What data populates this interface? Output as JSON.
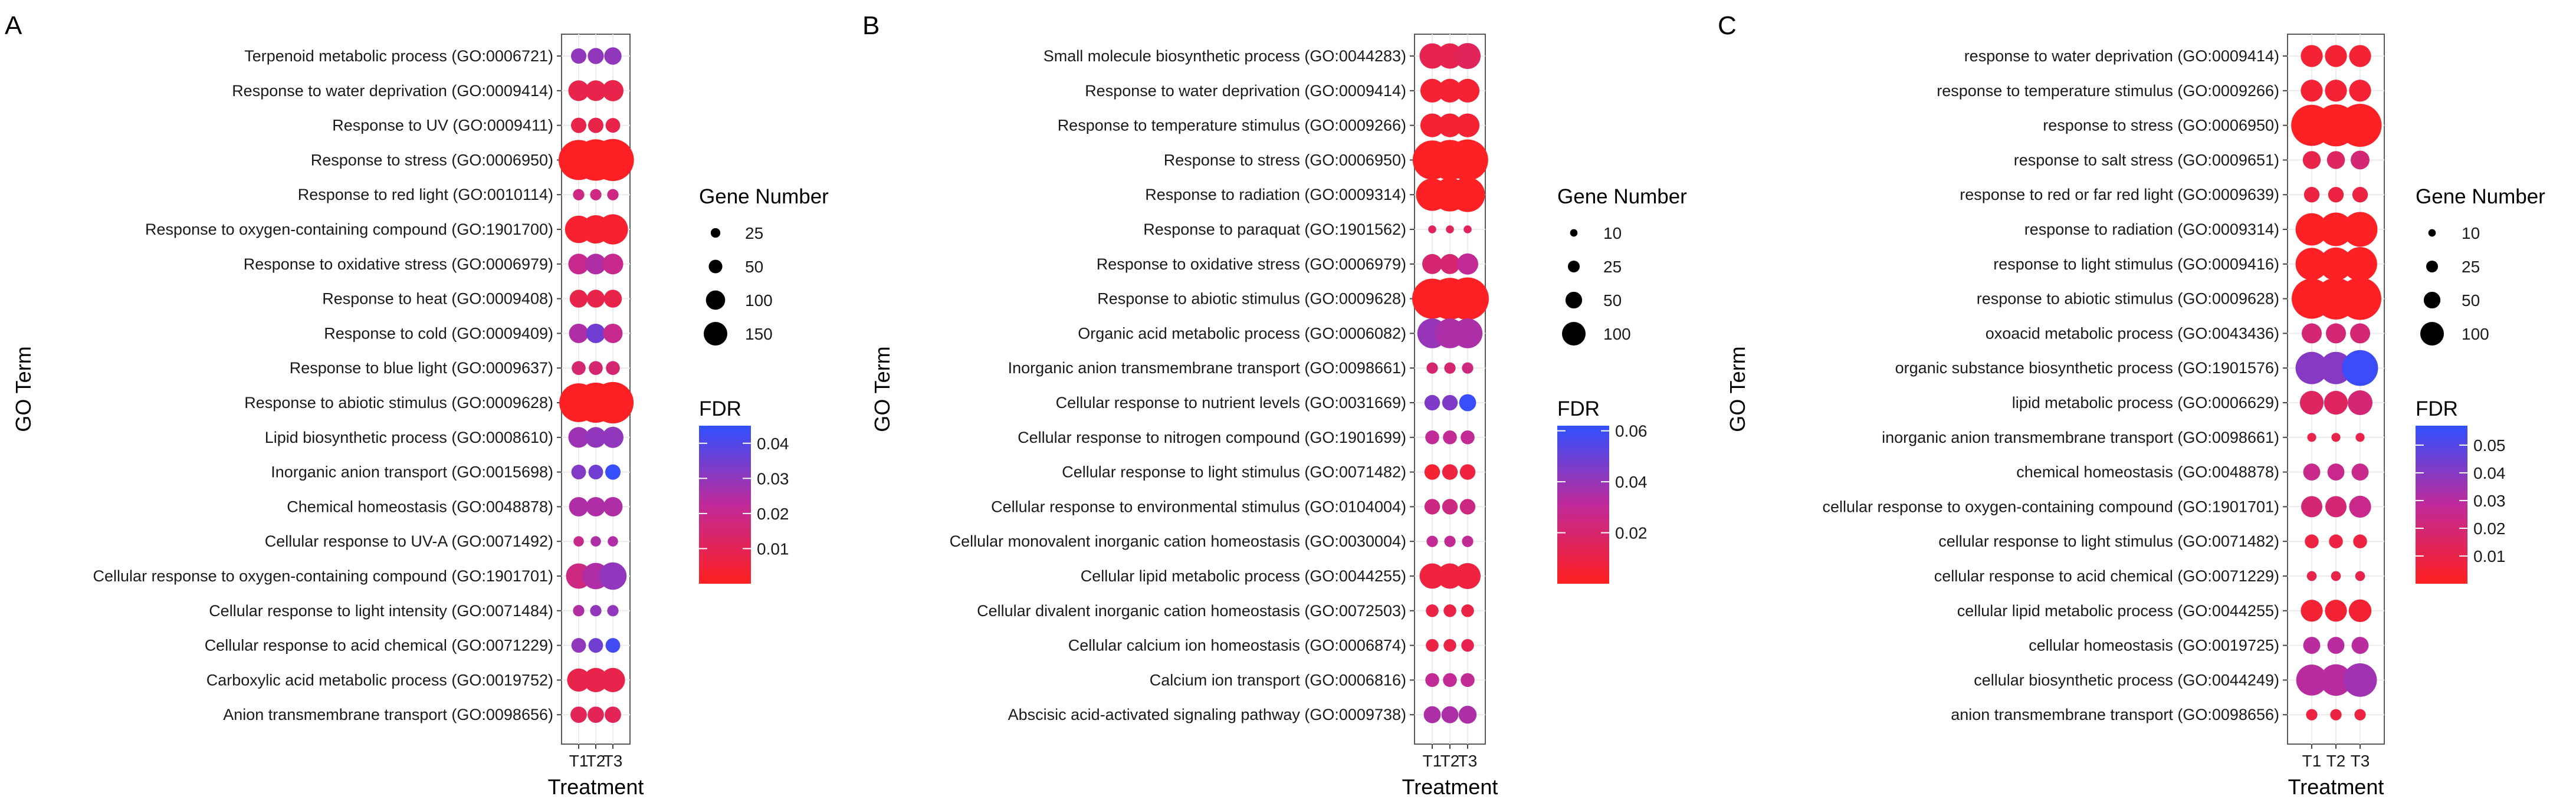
{
  "chart_data": [
    {
      "type": "scatter",
      "panel": "A",
      "xlabel": "Treatment",
      "ylabel": "GO Term",
      "x": [
        "T1",
        "T2",
        "T3"
      ],
      "size_legend": {
        "title": "Gene Number",
        "values": [
          25,
          50,
          100,
          150
        ]
      },
      "color_legend": {
        "title": "FDR",
        "ticks": [
          0.01,
          0.02,
          0.03,
          0.04
        ],
        "range": [
          0.0,
          0.045
        ],
        "low_color": "#ff2020",
        "mid_color": "#c02a9a",
        "high_color": "#3050ff"
      },
      "terms": [
        {
          "label": "Terpenoid metabolic process (GO:0006721)",
          "size": [
            22,
            24,
            28
          ],
          "fdr": [
            0.03,
            0.03,
            0.03
          ]
        },
        {
          "label": "Response to water deprivation (GO:0009414)",
          "size": [
            40,
            40,
            42
          ],
          "fdr": [
            0.008,
            0.008,
            0.008
          ]
        },
        {
          "label": "Response to UV (GO:0009411)",
          "size": [
            22,
            22,
            20
          ],
          "fdr": [
            0.008,
            0.008,
            0.008
          ]
        },
        {
          "label": "Response to stress (GO:0006950)",
          "size": [
            150,
            160,
            165
          ],
          "fdr": [
            0.001,
            0.001,
            0.001
          ]
        },
        {
          "label": "Response to red light (GO:0010114)",
          "size": [
            12,
            12,
            12
          ],
          "fdr": [
            0.018,
            0.018,
            0.018
          ]
        },
        {
          "label": "Response to oxygen-containing compound (GO:1901700)",
          "size": [
            70,
            75,
            85
          ],
          "fdr": [
            0.003,
            0.003,
            0.003
          ]
        },
        {
          "label": "Response to oxidative stress (GO:0006979)",
          "size": [
            40,
            40,
            40
          ],
          "fdr": [
            0.02,
            0.025,
            0.02
          ]
        },
        {
          "label": "Response to heat (GO:0009408)",
          "size": [
            30,
            30,
            30
          ],
          "fdr": [
            0.008,
            0.008,
            0.008
          ]
        },
        {
          "label": "Response to cold (GO:0009409)",
          "size": [
            35,
            35,
            35
          ],
          "fdr": [
            0.025,
            0.035,
            0.02
          ]
        },
        {
          "label": "Response to blue light (GO:0009637)",
          "size": [
            18,
            18,
            18
          ],
          "fdr": [
            0.015,
            0.015,
            0.015
          ]
        },
        {
          "label": "Response to abiotic stimulus (GO:0009628)",
          "size": [
            140,
            150,
            160
          ],
          "fdr": [
            0.001,
            0.001,
            0.001
          ]
        },
        {
          "label": "Lipid biosynthetic process (GO:0008610)",
          "size": [
            40,
            40,
            42
          ],
          "fdr": [
            0.028,
            0.03,
            0.03
          ]
        },
        {
          "label": "Inorganic anion transport (GO:0015698)",
          "size": [
            20,
            20,
            22
          ],
          "fdr": [
            0.032,
            0.035,
            0.044
          ]
        },
        {
          "label": "Chemical homeostasis (GO:0048878)",
          "size": [
            35,
            35,
            35
          ],
          "fdr": [
            0.025,
            0.025,
            0.025
          ]
        },
        {
          "label": "Cellular response to UV-A (GO:0071492)",
          "size": [
            10,
            10,
            10
          ],
          "fdr": [
            0.02,
            0.025,
            0.025
          ]
        },
        {
          "label": "Cellular response to oxygen-containing compound (GO:1901701)",
          "size": [
            60,
            65,
            70
          ],
          "fdr": [
            0.018,
            0.025,
            0.03
          ]
        },
        {
          "label": "Cellular response to light intensity (GO:0071484)",
          "size": [
            12,
            12,
            12
          ],
          "fdr": [
            0.025,
            0.03,
            0.03
          ]
        },
        {
          "label": "Cellular response to acid chemical (GO:0071229)",
          "size": [
            20,
            20,
            20
          ],
          "fdr": [
            0.03,
            0.035,
            0.042
          ]
        },
        {
          "label": "Carboxylic acid metabolic process (GO:0019752)",
          "size": [
            50,
            55,
            55
          ],
          "fdr": [
            0.008,
            0.008,
            0.008
          ]
        },
        {
          "label": "Anion transmembrane transport (GO:0098656)",
          "size": [
            25,
            25,
            25
          ],
          "fdr": [
            0.01,
            0.01,
            0.01
          ]
        }
      ]
    },
    {
      "type": "scatter",
      "panel": "B",
      "xlabel": "Treatment",
      "ylabel": "GO Term",
      "x": [
        "T1",
        "T2",
        "T3"
      ],
      "size_legend": {
        "title": "Gene Number",
        "values": [
          10,
          25,
          50,
          100
        ]
      },
      "color_legend": {
        "title": "FDR",
        "ticks": [
          0.02,
          0.04,
          0.06
        ],
        "range": [
          0.0,
          0.062
        ],
        "low_color": "#ff2020",
        "mid_color": "#c02a9a",
        "high_color": "#3050ff"
      },
      "terms": [
        {
          "label": "Small molecule biosynthetic process (GO:0044283)",
          "size": [
            40,
            40,
            42
          ],
          "fdr": [
            0.012,
            0.012,
            0.015
          ]
        },
        {
          "label": "Response to water deprivation (GO:0009414)",
          "size": [
            35,
            35,
            35
          ],
          "fdr": [
            0.005,
            0.005,
            0.005
          ]
        },
        {
          "label": "Response to temperature stimulus (GO:0009266)",
          "size": [
            35,
            35,
            35
          ],
          "fdr": [
            0.005,
            0.005,
            0.005
          ]
        },
        {
          "label": "Response to stress (GO:0006950)",
          "size": [
            95,
            100,
            105
          ],
          "fdr": [
            0.001,
            0.001,
            0.001
          ]
        },
        {
          "label": "Response to radiation (GO:0009314)",
          "size": [
            65,
            70,
            75
          ],
          "fdr": [
            0.001,
            0.001,
            0.001
          ]
        },
        {
          "label": "Response to paraquat (GO:1901562)",
          "size": [
            4,
            4,
            4
          ],
          "fdr": [
            0.015,
            0.015,
            0.015
          ]
        },
        {
          "label": "Response to oxidative stress (GO:0006979)",
          "size": [
            25,
            25,
            28
          ],
          "fdr": [
            0.02,
            0.02,
            0.03
          ]
        },
        {
          "label": "Response to abiotic stimulus (GO:0009628)",
          "size": [
            100,
            108,
            112
          ],
          "fdr": [
            0.001,
            0.001,
            0.001
          ]
        },
        {
          "label": "Organic acid metabolic process (GO:0006082)",
          "size": [
            55,
            55,
            55
          ],
          "fdr": [
            0.04,
            0.035,
            0.035
          ]
        },
        {
          "label": "Inorganic anion transmembrane transport (GO:0098661)",
          "size": [
            8,
            8,
            8
          ],
          "fdr": [
            0.02,
            0.02,
            0.025
          ]
        },
        {
          "label": "Cellular response to nutrient levels (GO:0031669)",
          "size": [
            15,
            15,
            18
          ],
          "fdr": [
            0.045,
            0.045,
            0.06
          ]
        },
        {
          "label": "Cellular response to nitrogen compound (GO:1901699)",
          "size": [
            12,
            12,
            12
          ],
          "fdr": [
            0.03,
            0.03,
            0.03
          ]
        },
        {
          "label": "Cellular response to light stimulus (GO:0071482)",
          "size": [
            15,
            15,
            15
          ],
          "fdr": [
            0.005,
            0.008,
            0.008
          ]
        },
        {
          "label": "Cellular response to environmental stimulus (GO:0104004)",
          "size": [
            15,
            15,
            15
          ],
          "fdr": [
            0.025,
            0.025,
            0.025
          ]
        },
        {
          "label": "Cellular monovalent inorganic cation homeostasis (GO:0030004)",
          "size": [
            8,
            8,
            8
          ],
          "fdr": [
            0.03,
            0.03,
            0.03
          ]
        },
        {
          "label": "Cellular lipid metabolic process (GO:0044255)",
          "size": [
            40,
            40,
            42
          ],
          "fdr": [
            0.008,
            0.008,
            0.008
          ]
        },
        {
          "label": "Cellular divalent inorganic cation homeostasis (GO:0072503)",
          "size": [
            10,
            10,
            10
          ],
          "fdr": [
            0.01,
            0.01,
            0.01
          ]
        },
        {
          "label": "Cellular calcium ion homeostasis (GO:0006874)",
          "size": [
            10,
            10,
            10
          ],
          "fdr": [
            0.01,
            0.01,
            0.012
          ]
        },
        {
          "label": "Calcium ion transport (GO:0006816)",
          "size": [
            12,
            12,
            12
          ],
          "fdr": [
            0.03,
            0.03,
            0.03
          ]
        },
        {
          "label": "Abscisic acid-activated signaling pathway (GO:0009738)",
          "size": [
            18,
            18,
            20
          ],
          "fdr": [
            0.035,
            0.035,
            0.035
          ]
        }
      ]
    },
    {
      "type": "scatter",
      "panel": "C",
      "xlabel": "Treatment",
      "ylabel": "GO Term",
      "x": [
        "T1",
        "T2",
        "T3"
      ],
      "size_legend": {
        "title": "Gene Number",
        "values": [
          10,
          25,
          50,
          100
        ]
      },
      "color_legend": {
        "title": "FDR",
        "ticks": [
          0.01,
          0.02,
          0.03,
          0.04,
          0.05
        ],
        "range": [
          0.0,
          0.057
        ],
        "low_color": "#ff2020",
        "mid_color": "#c02a9a",
        "high_color": "#3050ff"
      },
      "terms": [
        {
          "label": "response to water deprivation (GO:0009414)",
          "size": [
            30,
            30,
            30
          ],
          "fdr": [
            0.005,
            0.005,
            0.005
          ]
        },
        {
          "label": "response to temperature stimulus (GO:0009266)",
          "size": [
            30,
            30,
            30
          ],
          "fdr": [
            0.005,
            0.005,
            0.005
          ]
        },
        {
          "label": "response to stress (GO:0006950)",
          "size": [
            105,
            110,
            115
          ],
          "fdr": [
            0.001,
            0.001,
            0.001
          ]
        },
        {
          "label": "response to salt stress (GO:0009651)",
          "size": [
            20,
            20,
            22
          ],
          "fdr": [
            0.01,
            0.015,
            0.02
          ]
        },
        {
          "label": "response to red or far red light (GO:0009639)",
          "size": [
            15,
            15,
            15
          ],
          "fdr": [
            0.008,
            0.008,
            0.008
          ]
        },
        {
          "label": "response to radiation (GO:0009314)",
          "size": [
            65,
            70,
            75
          ],
          "fdr": [
            0.001,
            0.001,
            0.001
          ]
        },
        {
          "label": "response to light stimulus (GO:0009416)",
          "size": [
            65,
            68,
            72
          ],
          "fdr": [
            0.001,
            0.001,
            0.001
          ]
        },
        {
          "label": "response to abiotic stimulus (GO:0009628)",
          "size": [
            100,
            108,
            112
          ],
          "fdr": [
            0.001,
            0.001,
            0.001
          ]
        },
        {
          "label": "oxoacid metabolic process (GO:0043436)",
          "size": [
            25,
            25,
            25
          ],
          "fdr": [
            0.02,
            0.02,
            0.02
          ]
        },
        {
          "label": "organic substance biosynthetic process (GO:1901576)",
          "size": [
            65,
            65,
            80
          ],
          "fdr": [
            0.04,
            0.04,
            0.055
          ]
        },
        {
          "label": "lipid metabolic process (GO:0006629)",
          "size": [
            35,
            35,
            38
          ],
          "fdr": [
            0.015,
            0.015,
            0.02
          ]
        },
        {
          "label": "inorganic anion transmembrane transport (GO:0098661)",
          "size": [
            5,
            5,
            5
          ],
          "fdr": [
            0.01,
            0.01,
            0.01
          ]
        },
        {
          "label": "chemical homeostasis (GO:0048878)",
          "size": [
            18,
            18,
            18
          ],
          "fdr": [
            0.025,
            0.025,
            0.025
          ]
        },
        {
          "label": "cellular response to oxygen-containing compound (GO:1901701)",
          "size": [
            28,
            28,
            30
          ],
          "fdr": [
            0.02,
            0.02,
            0.025
          ]
        },
        {
          "label": "cellular response to light stimulus (GO:0071482)",
          "size": [
            12,
            12,
            12
          ],
          "fdr": [
            0.008,
            0.008,
            0.008
          ]
        },
        {
          "label": "cellular response to acid chemical (GO:0071229)",
          "size": [
            6,
            6,
            6
          ],
          "fdr": [
            0.01,
            0.01,
            0.01
          ]
        },
        {
          "label": "cellular lipid metabolic process (GO:0044255)",
          "size": [
            30,
            30,
            32
          ],
          "fdr": [
            0.005,
            0.005,
            0.005
          ]
        },
        {
          "label": "cellular homeostasis (GO:0019725)",
          "size": [
            18,
            18,
            18
          ],
          "fdr": [
            0.03,
            0.03,
            0.03
          ]
        },
        {
          "label": "cellular biosynthetic process (GO:0044249)",
          "size": [
            60,
            62,
            70
          ],
          "fdr": [
            0.03,
            0.03,
            0.035
          ]
        },
        {
          "label": "anion transmembrane transport (GO:0098656)",
          "size": [
            8,
            8,
            8
          ],
          "fdr": [
            0.008,
            0.008,
            0.008
          ]
        }
      ]
    }
  ]
}
